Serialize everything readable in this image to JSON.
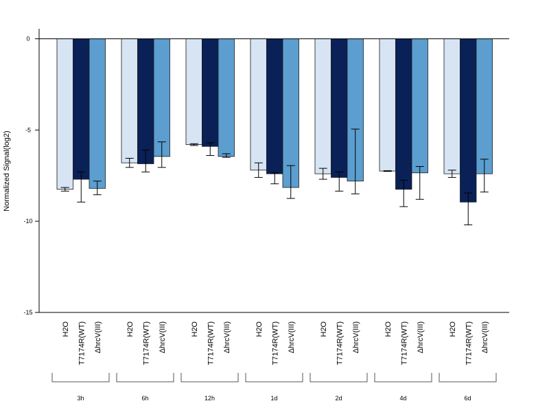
{
  "chart_data": {
    "type": "bar",
    "ylabel": "Normalized Signal(log2)",
    "ylim": [
      -15,
      0.5
    ],
    "yticks": [
      0,
      -5,
      -10,
      -15
    ],
    "ytick_labels": [
      "0",
      "-5",
      "-10",
      "-15"
    ],
    "grid": false,
    "groups": [
      "3h",
      "6h",
      "12h",
      "1d",
      "2d",
      "4d",
      "6d"
    ],
    "series_labels": [
      "H2O",
      "T7174R(WT)",
      "ΔhrcV(III)"
    ],
    "colors": [
      "#d6e4f4",
      "#0a2157",
      "#5b9ecf"
    ],
    "series": [
      {
        "values": [
          -8.25,
          -6.8,
          -5.8,
          -7.2,
          -7.4,
          -7.25,
          -7.4
        ],
        "err_low": [
          -8.35,
          -7.05,
          -5.85,
          -7.6,
          -7.7,
          -7.27,
          -7.6
        ],
        "err_high": [
          -8.15,
          -6.55,
          -5.75,
          -6.8,
          -7.1,
          -7.23,
          -7.2
        ]
      },
      {
        "values": [
          -7.7,
          -6.85,
          -5.9,
          -7.4,
          -7.6,
          -8.25,
          -8.95
        ],
        "err_low": [
          -8.95,
          -7.3,
          -6.4,
          -7.95,
          -8.35,
          -9.2,
          -10.2
        ],
        "err_high": [
          -7.3,
          -6.1,
          -5.7,
          -7.35,
          -7.3,
          -7.75,
          -8.45
        ]
      },
      {
        "values": [
          -8.2,
          -6.45,
          -6.45,
          -8.15,
          -7.8,
          -7.35,
          -7.4
        ],
        "err_low": [
          -8.55,
          -7.05,
          -6.5,
          -8.75,
          -8.5,
          -8.8,
          -8.4
        ],
        "err_high": [
          -7.8,
          -5.65,
          -6.3,
          -6.95,
          -4.95,
          -7.0,
          -6.6
        ]
      }
    ]
  }
}
